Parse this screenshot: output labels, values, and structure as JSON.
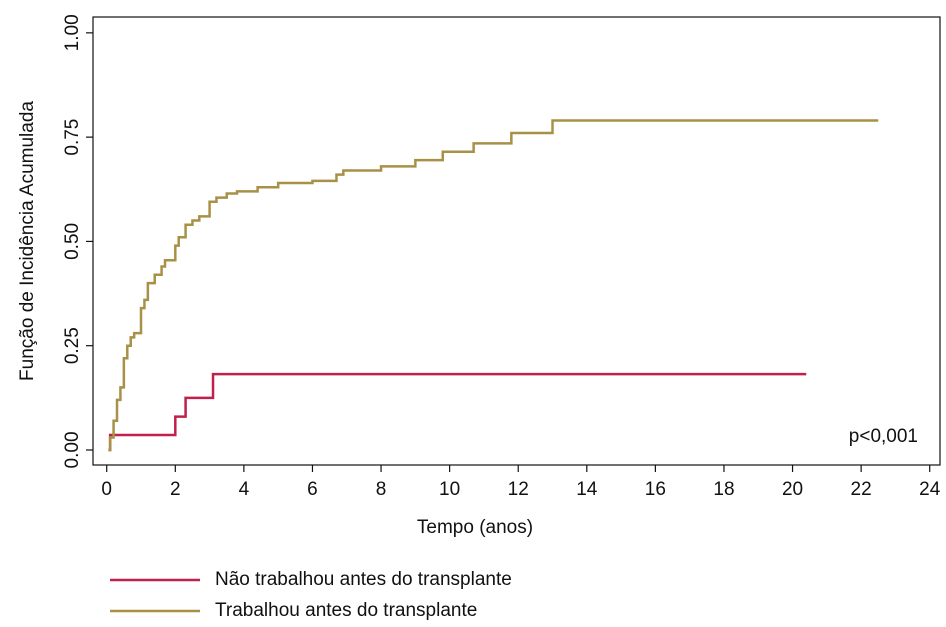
{
  "chart_data": {
    "type": "step",
    "xlabel": "Tempo (anos)",
    "ylabel": "Função de Incidência Acumulada",
    "annotation": "p<0,001",
    "xlim": [
      -0.4,
      24.3
    ],
    "ylim": [
      -0.036,
      1.038
    ],
    "xticks": [
      0,
      2,
      4,
      6,
      8,
      10,
      12,
      14,
      16,
      18,
      20,
      22,
      24
    ],
    "yticks": [
      {
        "value": 0,
        "label": "0.00"
      },
      {
        "value": 0.25,
        "label": "0.25"
      },
      {
        "value": 0.5,
        "label": "0.50"
      },
      {
        "value": 0.75,
        "label": "0.75"
      },
      {
        "value": 1,
        "label": "1.00"
      }
    ],
    "series": [
      {
        "name": "Não trabalhou antes do transplante",
        "color": "#c0204a",
        "x": [
          0.05,
          0.1,
          2.0,
          2.3,
          3.1,
          20.4
        ],
        "values": [
          0,
          0.036,
          0.08,
          0.125,
          0.182,
          0.182
        ]
      },
      {
        "name": "Trabalhou antes do transplante",
        "color": "#a89147",
        "x": [
          0.05,
          0.1,
          0.2,
          0.3,
          0.4,
          0.5,
          0.6,
          0.7,
          0.8,
          1.0,
          1.1,
          1.2,
          1.4,
          1.6,
          1.7,
          2.0,
          2.1,
          2.3,
          2.5,
          2.7,
          3.0,
          3.2,
          3.5,
          3.8,
          4.4,
          5.0,
          6.0,
          6.7,
          6.9,
          8.0,
          9.0,
          9.8,
          10.7,
          11.8,
          13.0,
          22.5
        ],
        "values": [
          0,
          0.03,
          0.07,
          0.12,
          0.15,
          0.22,
          0.25,
          0.27,
          0.28,
          0.34,
          0.36,
          0.4,
          0.42,
          0.44,
          0.455,
          0.49,
          0.51,
          0.54,
          0.55,
          0.56,
          0.595,
          0.605,
          0.615,
          0.62,
          0.63,
          0.64,
          0.645,
          0.66,
          0.67,
          0.68,
          0.695,
          0.715,
          0.735,
          0.76,
          0.79,
          0.79
        ]
      }
    ]
  }
}
